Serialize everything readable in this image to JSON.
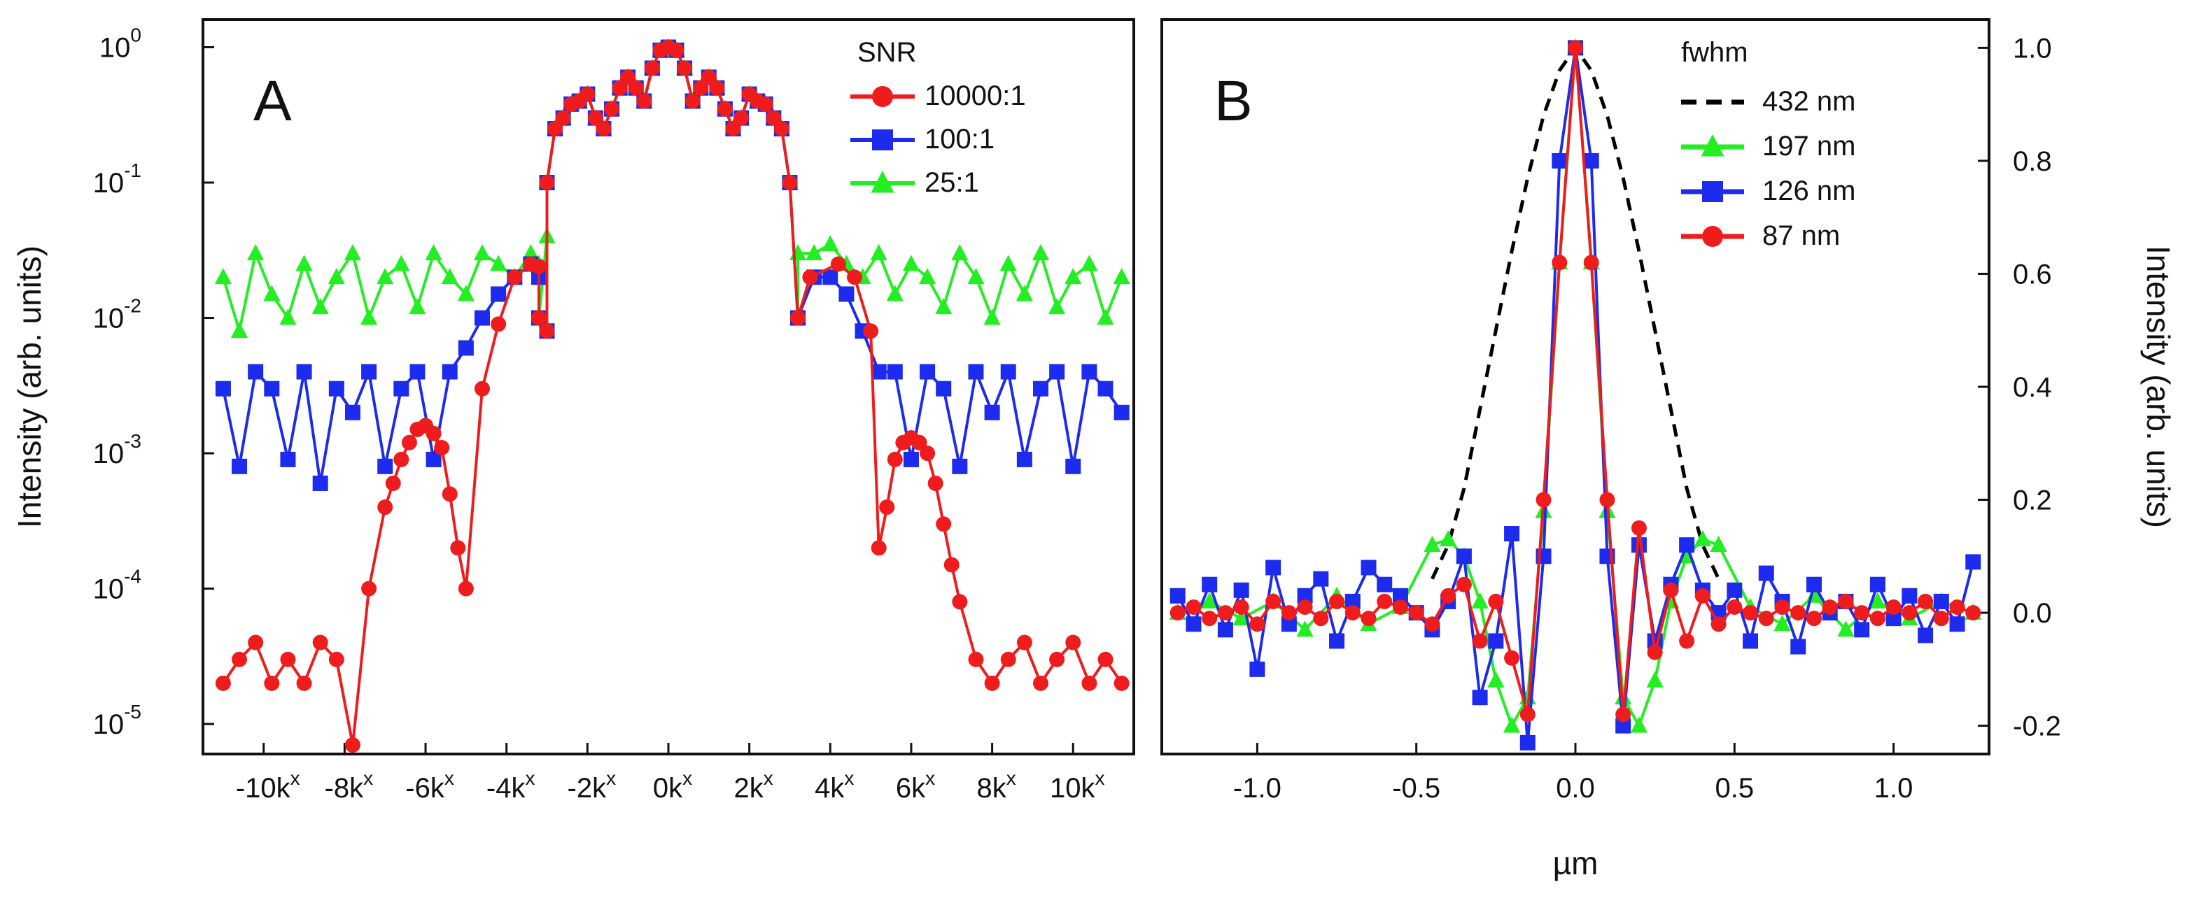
{
  "chart_data": [
    {
      "panel_label": "A",
      "type": "line",
      "ylabel": "Intensity (arb. units)",
      "yscale": "log",
      "ylim": [
        6e-06,
        1.6
      ],
      "y_ticks": [
        {
          "value": 1,
          "base": "10",
          "exp": "0"
        },
        {
          "value": 0.1,
          "base": "10",
          "exp": "-1"
        },
        {
          "value": 0.01,
          "base": "10",
          "exp": "-2"
        },
        {
          "value": 0.001,
          "base": "10",
          "exp": "-3"
        },
        {
          "value": 0.0001,
          "base": "10",
          "exp": "-4"
        },
        {
          "value": 1e-05,
          "base": "10",
          "exp": "-5"
        }
      ],
      "xlim": [
        -11.5,
        11.5
      ],
      "x_ticks": [
        {
          "value": -10,
          "text": "-10k",
          "sup": "x"
        },
        {
          "value": -8,
          "text": "-8k",
          "sup": "x"
        },
        {
          "value": -6,
          "text": "-6k",
          "sup": "x"
        },
        {
          "value": -4,
          "text": "-4k",
          "sup": "x"
        },
        {
          "value": -2,
          "text": "-2k",
          "sup": "x"
        },
        {
          "value": 0,
          "text": "0k",
          "sup": "x"
        },
        {
          "value": 2,
          "text": "2k",
          "sup": "x"
        },
        {
          "value": 4,
          "text": "4k",
          "sup": "x"
        },
        {
          "value": 6,
          "text": "6k",
          "sup": "x"
        },
        {
          "value": 8,
          "text": "8k",
          "sup": "x"
        },
        {
          "value": 10,
          "text": "10k",
          "sup": "x"
        }
      ],
      "legend_title": "SNR",
      "legend_position": "top-right",
      "series": [
        {
          "name": "10000:1",
          "color": "#ee1c1c",
          "marker": "circle",
          "noise_floor": 3e-05,
          "x": [
            -11,
            -10.6,
            -10.2,
            -9.8,
            -9.4,
            -9,
            -8.6,
            -8.2,
            -7.8,
            -7.4,
            -7,
            -6.8,
            -6.6,
            -6.4,
            -6.2,
            -6,
            -5.8,
            -5.6,
            -5.4,
            -5.2,
            -5,
            -4.6,
            -4.2,
            -3.8,
            -3.4,
            -3.2,
            -3.0,
            3.2,
            3.5,
            4.2,
            4.6,
            5.0,
            5.2,
            5.4,
            5.6,
            5.8,
            6.0,
            6.2,
            6.4,
            6.6,
            6.8,
            7.0,
            7.2,
            7.6,
            8.0,
            8.4,
            8.8,
            9.2,
            9.6,
            10.0,
            10.4,
            10.8,
            11.2
          ],
          "y": [
            2e-05,
            3e-05,
            4e-05,
            2e-05,
            3e-05,
            2e-05,
            4e-05,
            3e-05,
            7e-06,
            0.0001,
            0.0004,
            0.0006,
            0.0009,
            0.0012,
            0.0015,
            0.0016,
            0.0014,
            0.0011,
            0.0005,
            0.0002,
            0.0001,
            0.003,
            0.009,
            0.02,
            0.025,
            0.024,
            0.008,
            0.01,
            0.02,
            0.025,
            0.02,
            0.008,
            0.0002,
            0.0004,
            0.0009,
            0.0012,
            0.0013,
            0.0012,
            0.001,
            0.0006,
            0.0003,
            0.00015,
            8e-05,
            3e-05,
            2e-05,
            3e-05,
            4e-05,
            2e-05,
            3e-05,
            4e-05,
            2e-05,
            3e-05,
            2e-05
          ]
        },
        {
          "name": "100:1",
          "color": "#1c2bee",
          "marker": "square",
          "noise_floor": 0.003,
          "x": [
            -11,
            -10.6,
            -10.2,
            -9.8,
            -9.4,
            -9,
            -8.6,
            -8.2,
            -7.8,
            -7.4,
            -7,
            -6.6,
            -6.2,
            -5.8,
            -5.4,
            -5,
            -4.6,
            -4.2,
            -3.8,
            -3.4,
            -3.2,
            -3.0,
            3.2,
            3.6,
            4.0,
            4.4,
            4.8,
            5.2,
            5.6,
            6.0,
            6.4,
            6.8,
            7.2,
            7.6,
            8.0,
            8.4,
            8.8,
            9.2,
            9.6,
            10.0,
            10.4,
            10.8,
            11.2
          ],
          "y": [
            0.003,
            0.0008,
            0.004,
            0.003,
            0.0009,
            0.004,
            0.0006,
            0.003,
            0.002,
            0.004,
            0.0008,
            0.003,
            0.004,
            0.0009,
            0.004,
            0.006,
            0.01,
            0.015,
            0.02,
            0.025,
            0.02,
            0.008,
            0.01,
            0.02,
            0.02,
            0.015,
            0.008,
            0.004,
            0.004,
            0.0009,
            0.004,
            0.003,
            0.0008,
            0.004,
            0.002,
            0.004,
            0.0009,
            0.003,
            0.004,
            0.0008,
            0.004,
            0.003,
            0.002
          ]
        },
        {
          "name": "25:1",
          "color": "#22ee22",
          "marker": "triangle",
          "noise_floor": 0.015,
          "x": [
            -11,
            -10.6,
            -10.2,
            -9.8,
            -9.4,
            -9,
            -8.6,
            -8.2,
            -7.8,
            -7.4,
            -7,
            -6.6,
            -6.2,
            -5.8,
            -5.4,
            -5,
            -4.6,
            -4.2,
            -3.8,
            -3.4,
            -3.2,
            -3.0,
            3.2,
            3.6,
            4.0,
            4.4,
            4.8,
            5.2,
            5.6,
            6.0,
            6.4,
            6.8,
            7.2,
            7.6,
            8.0,
            8.4,
            8.8,
            9.2,
            9.6,
            10.0,
            10.4,
            10.8,
            11.2
          ],
          "y": [
            0.02,
            0.008,
            0.03,
            0.015,
            0.01,
            0.025,
            0.012,
            0.02,
            0.03,
            0.01,
            0.02,
            0.025,
            0.012,
            0.03,
            0.02,
            0.015,
            0.03,
            0.025,
            0.02,
            0.03,
            0.025,
            0.04,
            0.03,
            0.03,
            0.035,
            0.025,
            0.02,
            0.03,
            0.015,
            0.025,
            0.02,
            0.012,
            0.03,
            0.02,
            0.01,
            0.025,
            0.015,
            0.03,
            0.012,
            0.02,
            0.025,
            0.01,
            0.02
          ]
        }
      ],
      "shared_center_lobes": {
        "x": [
          -3.2,
          -3.0,
          -2.8,
          -2.6,
          -2.4,
          -2.2,
          -2.0,
          -1.8,
          -1.6,
          -1.4,
          -1.2,
          -1.0,
          -0.8,
          -0.6,
          -0.4,
          -0.2,
          0.0,
          0.2,
          0.4,
          0.6,
          0.8,
          1.0,
          1.2,
          1.4,
          1.6,
          1.8,
          2.0,
          2.2,
          2.4,
          2.6,
          2.8,
          3.0,
          3.2
        ],
        "y": [
          0.01,
          0.1,
          0.25,
          0.3,
          0.38,
          0.4,
          0.45,
          0.3,
          0.25,
          0.35,
          0.5,
          0.6,
          0.5,
          0.4,
          0.7,
          0.95,
          1.0,
          0.95,
          0.7,
          0.4,
          0.5,
          0.6,
          0.5,
          0.35,
          0.25,
          0.3,
          0.45,
          0.4,
          0.38,
          0.3,
          0.25,
          0.1,
          0.01
        ]
      }
    },
    {
      "panel_label": "B",
      "type": "line",
      "xlabel": "µm",
      "ylabel": "Intensity (arb. units)",
      "xlim": [
        -1.3,
        1.3
      ],
      "ylim": [
        -0.25,
        1.05
      ],
      "x_ticks": [
        {
          "value": -1.0,
          "text": "-1.0"
        },
        {
          "value": -0.5,
          "text": "-0.5"
        },
        {
          "value": 0.0,
          "text": "0.0"
        },
        {
          "value": 0.5,
          "text": "0.5"
        },
        {
          "value": 1.0,
          "text": "1.0"
        }
      ],
      "y_ticks": [
        {
          "value": 1.0,
          "text": "1.0"
        },
        {
          "value": 0.8,
          "text": "0.8"
        },
        {
          "value": 0.6,
          "text": "0.6"
        },
        {
          "value": 0.4,
          "text": "0.4"
        },
        {
          "value": 0.2,
          "text": "0.2"
        },
        {
          "value": 0.0,
          "text": "0.0"
        },
        {
          "value": -0.2,
          "text": "-0.2"
        }
      ],
      "legend_title": "fwhm",
      "legend_position": "top-right",
      "series": [
        {
          "name": "432 nm",
          "color": "#000000",
          "style": "dashed",
          "x": [
            -0.45,
            -0.4,
            -0.35,
            -0.3,
            -0.25,
            -0.2,
            -0.15,
            -0.1,
            -0.05,
            0.0,
            0.05,
            0.1,
            0.15,
            0.2,
            0.25,
            0.3,
            0.35,
            0.4,
            0.45
          ],
          "y": [
            0.06,
            0.12,
            0.22,
            0.36,
            0.5,
            0.64,
            0.77,
            0.88,
            0.96,
            1.0,
            0.96,
            0.88,
            0.77,
            0.64,
            0.5,
            0.36,
            0.22,
            0.12,
            0.06
          ]
        },
        {
          "name": "197 nm",
          "color": "#22ee22",
          "marker": "triangle",
          "x": [
            -1.25,
            -1.15,
            -1.05,
            -0.95,
            -0.85,
            -0.75,
            -0.65,
            -0.55,
            -0.45,
            -0.4,
            -0.35,
            -0.3,
            -0.25,
            -0.2,
            -0.15,
            -0.1,
            -0.05,
            0.0,
            0.05,
            0.1,
            0.15,
            0.2,
            0.25,
            0.3,
            0.35,
            0.4,
            0.45,
            0.55,
            0.65,
            0.75,
            0.85,
            0.95,
            1.05,
            1.15,
            1.25
          ],
          "y": [
            0.0,
            0.02,
            -0.01,
            0.02,
            -0.03,
            0.03,
            -0.02,
            0.01,
            0.12,
            0.13,
            0.1,
            0.02,
            -0.12,
            -0.2,
            -0.15,
            0.18,
            0.62,
            1.0,
            0.62,
            0.18,
            -0.15,
            -0.2,
            -0.12,
            0.02,
            0.1,
            0.13,
            0.12,
            0.01,
            -0.02,
            0.03,
            -0.03,
            0.02,
            -0.01,
            0.02,
            0.0
          ]
        },
        {
          "name": "126 nm",
          "color": "#1c2bee",
          "marker": "square",
          "x": [
            -1.25,
            -1.2,
            -1.15,
            -1.1,
            -1.05,
            -1.0,
            -0.95,
            -0.9,
            -0.85,
            -0.8,
            -0.75,
            -0.7,
            -0.65,
            -0.6,
            -0.55,
            -0.5,
            -0.45,
            -0.4,
            -0.35,
            -0.3,
            -0.25,
            -0.2,
            -0.15,
            -0.1,
            -0.05,
            0.0,
            0.05,
            0.1,
            0.15,
            0.2,
            0.25,
            0.3,
            0.35,
            0.4,
            0.45,
            0.5,
            0.55,
            0.6,
            0.65,
            0.7,
            0.75,
            0.8,
            0.85,
            0.9,
            0.95,
            1.0,
            1.05,
            1.1,
            1.15,
            1.2,
            1.25
          ],
          "y": [
            0.03,
            -0.02,
            0.05,
            -0.03,
            0.04,
            -0.1,
            0.08,
            -0.02,
            0.03,
            0.06,
            -0.05,
            0.02,
            0.08,
            0.05,
            0.03,
            0.0,
            -0.03,
            0.02,
            0.1,
            -0.15,
            -0.05,
            0.14,
            -0.23,
            0.1,
            0.8,
            1.0,
            0.8,
            0.1,
            -0.2,
            0.12,
            -0.05,
            0.05,
            0.12,
            0.04,
            0.0,
            0.04,
            -0.05,
            0.07,
            0.02,
            -0.06,
            0.05,
            0.0,
            0.02,
            -0.03,
            0.05,
            -0.01,
            0.03,
            -0.04,
            0.02,
            -0.02,
            0.09
          ]
        },
        {
          "name": "87 nm",
          "color": "#ee1c1c",
          "marker": "circle",
          "x": [
            -1.25,
            -1.2,
            -1.15,
            -1.1,
            -1.05,
            -1.0,
            -0.95,
            -0.9,
            -0.85,
            -0.8,
            -0.75,
            -0.7,
            -0.65,
            -0.6,
            -0.55,
            -0.5,
            -0.45,
            -0.4,
            -0.35,
            -0.3,
            -0.25,
            -0.2,
            -0.15,
            -0.1,
            -0.05,
            0.0,
            0.05,
            0.1,
            0.15,
            0.2,
            0.25,
            0.3,
            0.35,
            0.4,
            0.45,
            0.5,
            0.55,
            0.6,
            0.65,
            0.7,
            0.75,
            0.8,
            0.85,
            0.9,
            0.95,
            1.0,
            1.05,
            1.1,
            1.15,
            1.2,
            1.25
          ],
          "y": [
            0.0,
            0.01,
            -0.01,
            0.0,
            0.01,
            -0.02,
            0.02,
            0.0,
            0.01,
            -0.01,
            0.02,
            0.0,
            -0.01,
            0.02,
            0.01,
            0.0,
            -0.02,
            0.03,
            0.05,
            -0.05,
            0.02,
            -0.08,
            -0.18,
            0.2,
            0.62,
            1.0,
            0.62,
            0.2,
            -0.18,
            0.15,
            -0.07,
            0.04,
            -0.05,
            0.03,
            -0.02,
            0.01,
            0.0,
            -0.01,
            0.01,
            0.0,
            -0.01,
            0.01,
            0.02,
            0.0,
            -0.01,
            0.01,
            0.0,
            0.02,
            -0.01,
            0.01,
            0.0
          ]
        }
      ]
    }
  ]
}
